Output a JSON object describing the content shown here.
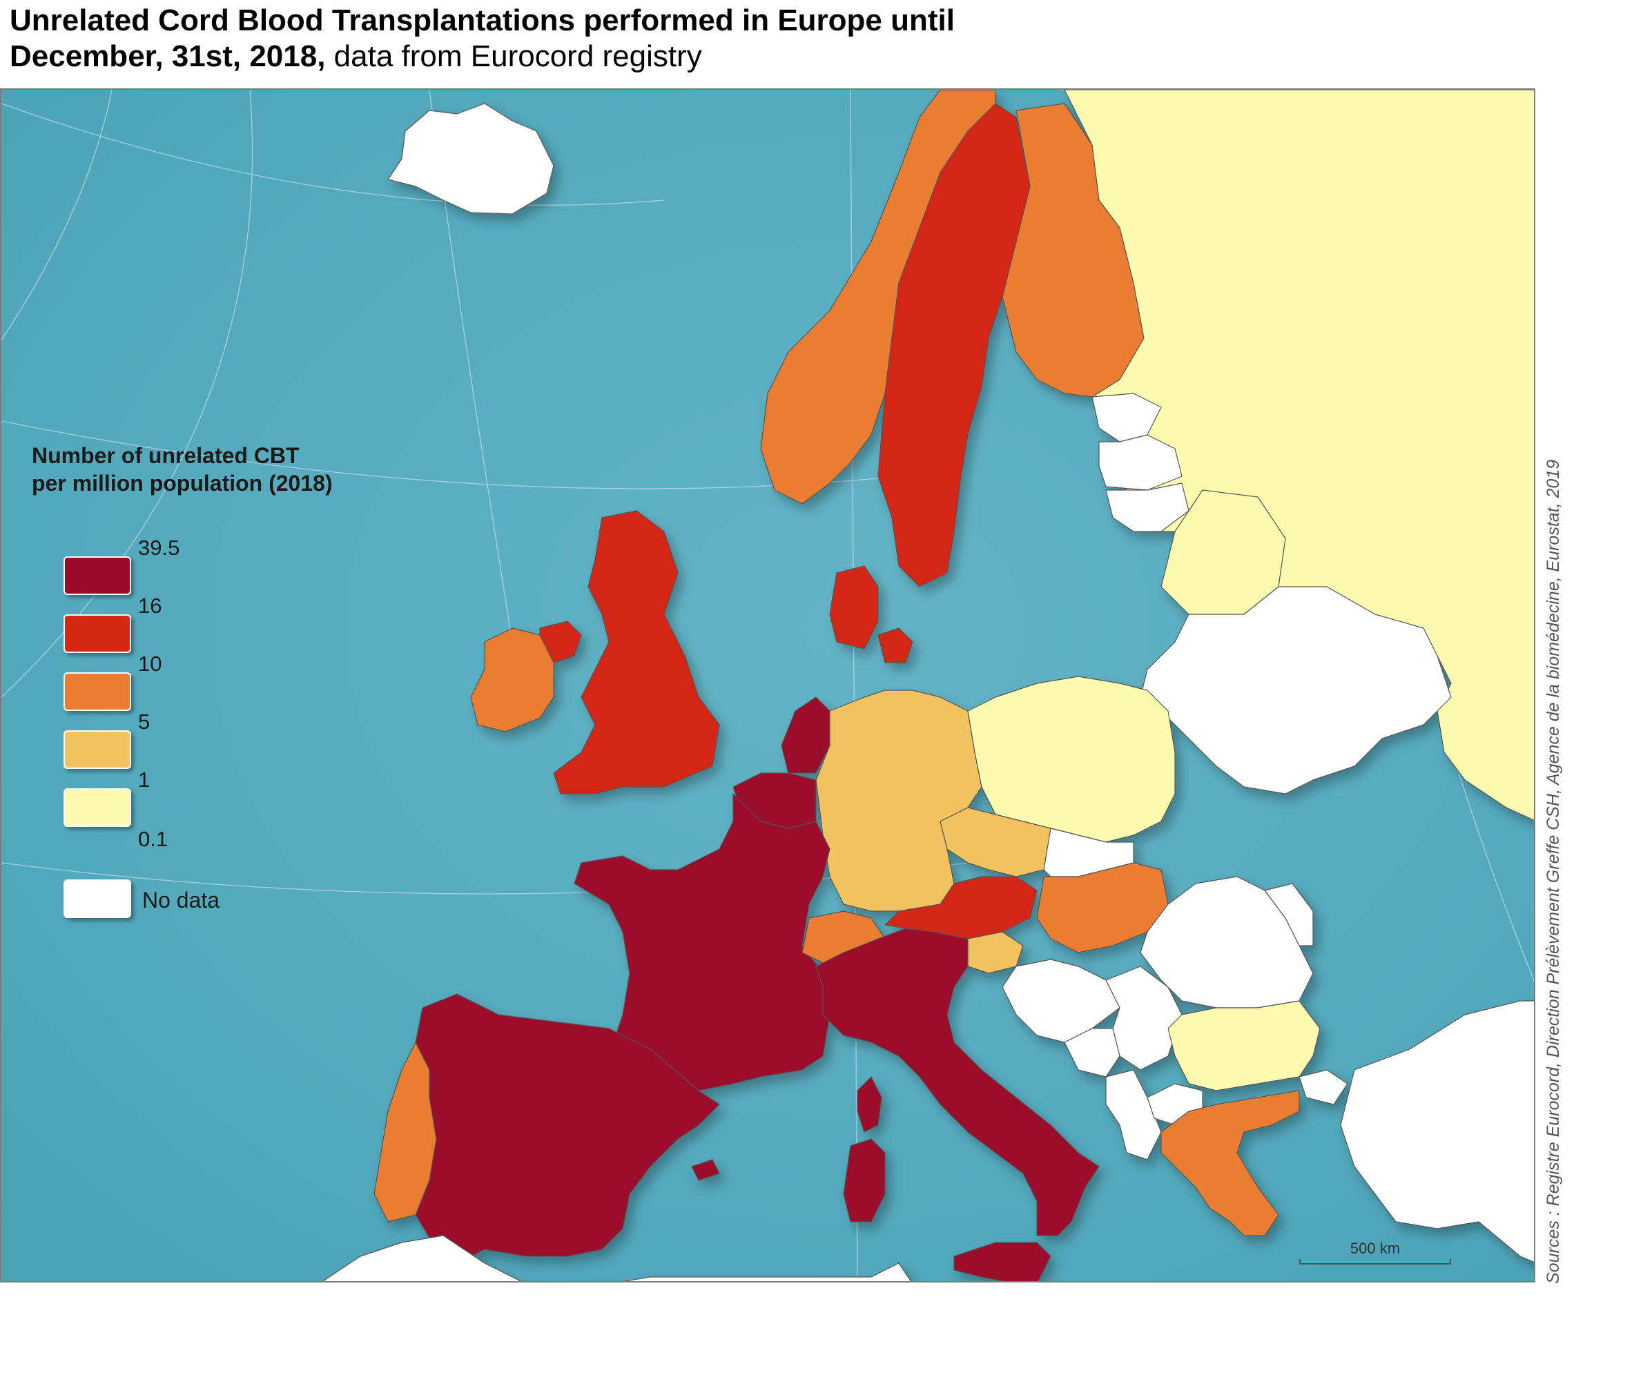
{
  "title": {
    "line1": "Unrelated Cord Blood Transplantations performed in Europe until",
    "line2_bold": "December, 31st, 2018,",
    "line2_normal": " data from Eurocord registry"
  },
  "legend": {
    "title_line1": "Number of unrelated CBT",
    "title_line2": "per million population (2018)",
    "classes": [
      {
        "label": "39.5",
        "color": "#9b0a2a"
      },
      {
        "label": "16",
        "color": "#d42814"
      },
      {
        "label": "10",
        "color": "#ea7d32"
      },
      {
        "label": "5",
        "color": "#f3c261"
      },
      {
        "label": "1",
        "color": "#fdfbaf"
      },
      {
        "label": "0.1",
        "color": null
      }
    ],
    "no_data": {
      "label": "No data",
      "color": "#ffffff"
    }
  },
  "scale": {
    "label": "500 km"
  },
  "source": "Sources : Registre Eurocord,  Direction Prélèvement Greffe CSH, Agence de la biomédecine, Eurostat, 2019",
  "colors": {
    "sea": "#5fb0c2",
    "sea_deep": "#4aa2b8",
    "no_data": "#ffffff",
    "class_39_5": "#9b0a2a",
    "class_16": "#d42814",
    "class_10": "#ea7d32",
    "class_5": "#f3c261",
    "class_1": "#fdfbaf"
  }
}
